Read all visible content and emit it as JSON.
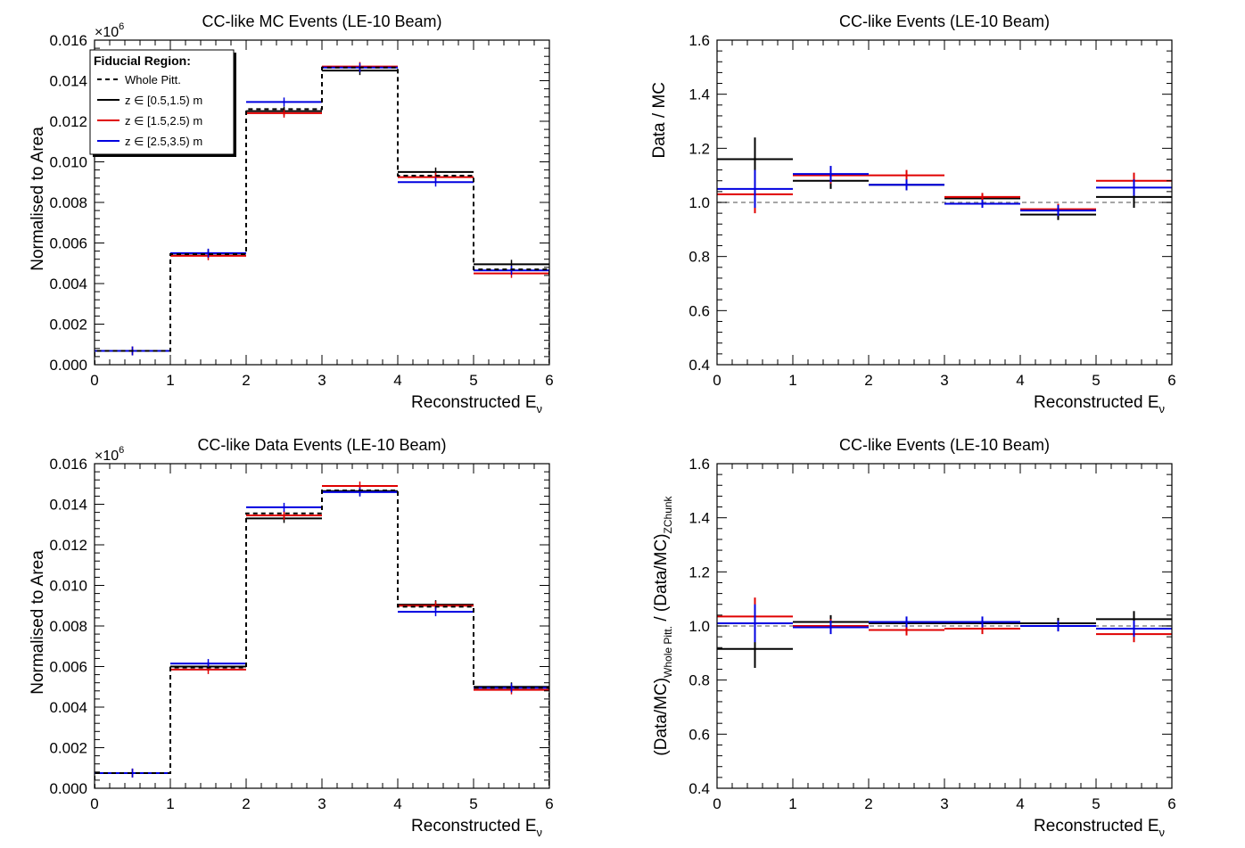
{
  "colors": {
    "dashed": "#000000",
    "black": "#000000",
    "red": "#e00000",
    "blue": "#0000e0",
    "ref_line": "#888888"
  },
  "legend": {
    "title": "Fiducial Region:",
    "entries": [
      {
        "label": "Whole Pitt.",
        "color": "#000000",
        "style": "dashed"
      },
      {
        "label": "z ∈ [0.5,1.5) m",
        "color": "#000000",
        "style": "solid"
      },
      {
        "label": "z ∈ [1.5,2.5) m",
        "color": "#e00000",
        "style": "solid"
      },
      {
        "label": "z ∈ [2.5,3.5) m",
        "color": "#0000e0",
        "style": "solid"
      }
    ]
  },
  "chart_data": [
    {
      "type": "histogram",
      "title": "CC-like MC Events (LE-10 Beam)",
      "ylabel": "Normalised to Area",
      "xlabel": "Reconstructed E",
      "xlabel_sub": "ν",
      "yexponent": "×10",
      "yexponent_sup": "6",
      "xlim": [
        0,
        6
      ],
      "ylim": [
        0,
        0.016
      ],
      "xticks": [
        "0",
        "1",
        "2",
        "3",
        "4",
        "5",
        "6"
      ],
      "yticks": [
        "0.000",
        "0.002",
        "0.004",
        "0.006",
        "0.008",
        "0.010",
        "0.012",
        "0.014",
        "0.016"
      ],
      "bin_edges": [
        0,
        1,
        2,
        3,
        4,
        5,
        6
      ],
      "series": [
        {
          "name": "Whole Pitt.",
          "style": "dashed",
          "color": "#000000",
          "values": [
            0.00068,
            0.00545,
            0.0126,
            0.01465,
            0.00932,
            0.0047
          ]
        },
        {
          "name": "z ∈ [0.5,1.5) m",
          "style": "solid",
          "color": "#000000",
          "values": [
            0.00068,
            0.00548,
            0.0125,
            0.0145,
            0.0095,
            0.00495
          ]
        },
        {
          "name": "z ∈ [1.5,2.5) m",
          "style": "solid",
          "color": "#e00000",
          "values": [
            0.00068,
            0.00537,
            0.0124,
            0.0147,
            0.00925,
            0.0045
          ]
        },
        {
          "name": "z ∈ [2.5,3.5) m",
          "style": "solid",
          "color": "#0000e0",
          "values": [
            0.00068,
            0.0055,
            0.01295,
            0.01465,
            0.009,
            0.00465
          ]
        }
      ]
    },
    {
      "type": "ratio",
      "title": "CC-like Events (LE-10 Beam)",
      "ylabel": "Data / MC",
      "xlabel": "Reconstructed E",
      "xlabel_sub": "ν",
      "xlim": [
        0,
        6
      ],
      "ylim": [
        0.4,
        1.6
      ],
      "xticks": [
        "0",
        "1",
        "2",
        "3",
        "4",
        "5",
        "6"
      ],
      "yticks": [
        "0.4",
        "0.6",
        "0.8",
        "1.0",
        "1.2",
        "1.4",
        "1.6"
      ],
      "reference": 1.0,
      "bin_edges": [
        0,
        1,
        2,
        3,
        4,
        5,
        6
      ],
      "series": [
        {
          "name": "z ∈ [0.5,1.5) m",
          "color": "#000000",
          "values": [
            1.16,
            1.08,
            1.065,
            1.015,
            0.955,
            1.02
          ],
          "errors": [
            0.08,
            0.03,
            0.02,
            0.015,
            0.02,
            0.04
          ]
        },
        {
          "name": "z ∈ [1.5,2.5) m",
          "color": "#e00000",
          "values": [
            1.03,
            1.1,
            1.1,
            1.02,
            0.975,
            1.08
          ],
          "errors": [
            0.07,
            0.03,
            0.02,
            0.015,
            0.02,
            0.03
          ]
        },
        {
          "name": "z ∈ [2.5,3.5) m",
          "color": "#0000e0",
          "values": [
            1.05,
            1.105,
            1.065,
            0.995,
            0.97,
            1.055
          ],
          "errors": [
            0.07,
            0.03,
            0.02,
            0.015,
            0.02,
            0.03
          ]
        }
      ]
    },
    {
      "type": "histogram",
      "title": "CC-like Data Events (LE-10 Beam)",
      "ylabel": "Normalised to Area",
      "xlabel": "Reconstructed E",
      "xlabel_sub": "ν",
      "yexponent": "×10",
      "yexponent_sup": "6",
      "xlim": [
        0,
        6
      ],
      "ylim": [
        0,
        0.016
      ],
      "xticks": [
        "0",
        "1",
        "2",
        "3",
        "4",
        "5",
        "6"
      ],
      "yticks": [
        "0.000",
        "0.002",
        "0.004",
        "0.006",
        "0.008",
        "0.010",
        "0.012",
        "0.014",
        "0.016"
      ],
      "bin_edges": [
        0,
        1,
        2,
        3,
        4,
        5,
        6
      ],
      "series": [
        {
          "name": "Whole Pitt.",
          "style": "dashed",
          "color": "#000000",
          "values": [
            0.00075,
            0.00595,
            0.01355,
            0.01468,
            0.00895,
            0.00495
          ]
        },
        {
          "name": "z ∈ [0.5,1.5) m",
          "style": "solid",
          "color": "#000000",
          "values": [
            0.00075,
            0.006,
            0.0133,
            0.01465,
            0.00905,
            0.005
          ]
        },
        {
          "name": "z ∈ [1.5,2.5) m",
          "style": "solid",
          "color": "#e00000",
          "values": [
            0.00075,
            0.00585,
            0.01345,
            0.0149,
            0.009,
            0.00485
          ]
        },
        {
          "name": "z ∈ [2.5,3.5) m",
          "style": "solid",
          "color": "#0000e0",
          "values": [
            0.00075,
            0.00615,
            0.01385,
            0.0146,
            0.0087,
            0.00495
          ]
        }
      ]
    },
    {
      "type": "ratio",
      "title": "CC-like Events (LE-10 Beam)",
      "ylabel": "(Data/MC)",
      "ylabel_sub1": "Whole Pitt.",
      "ylabel_mid": " / (Data/MC)",
      "ylabel_sub2": "ZChunk",
      "xlabel": "Reconstructed E",
      "xlabel_sub": "ν",
      "xlim": [
        0,
        6
      ],
      "ylim": [
        0.4,
        1.6
      ],
      "xticks": [
        "0",
        "1",
        "2",
        "3",
        "4",
        "5",
        "6"
      ],
      "yticks": [
        "0.4",
        "0.6",
        "0.8",
        "1.0",
        "1.2",
        "1.4",
        "1.6"
      ],
      "reference": 1.0,
      "bin_edges": [
        0,
        1,
        2,
        3,
        4,
        5,
        6
      ],
      "series": [
        {
          "name": "z ∈ [0.5,1.5) m",
          "color": "#000000",
          "values": [
            0.915,
            1.015,
            1.01,
            1.01,
            1.01,
            1.025
          ],
          "errors": [
            0.07,
            0.025,
            0.02,
            0.02,
            0.02,
            0.03
          ]
        },
        {
          "name": "z ∈ [1.5,2.5) m",
          "color": "#e00000",
          "values": [
            1.035,
            1.0,
            0.985,
            0.99,
            1.0,
            0.97
          ],
          "errors": [
            0.07,
            0.025,
            0.02,
            0.02,
            0.02,
            0.03
          ]
        },
        {
          "name": "z ∈ [2.5,3.5) m",
          "color": "#0000e0",
          "values": [
            1.01,
            0.995,
            1.015,
            1.015,
            1.0,
            0.99
          ],
          "errors": [
            0.07,
            0.025,
            0.02,
            0.02,
            0.02,
            0.03
          ]
        }
      ]
    }
  ]
}
